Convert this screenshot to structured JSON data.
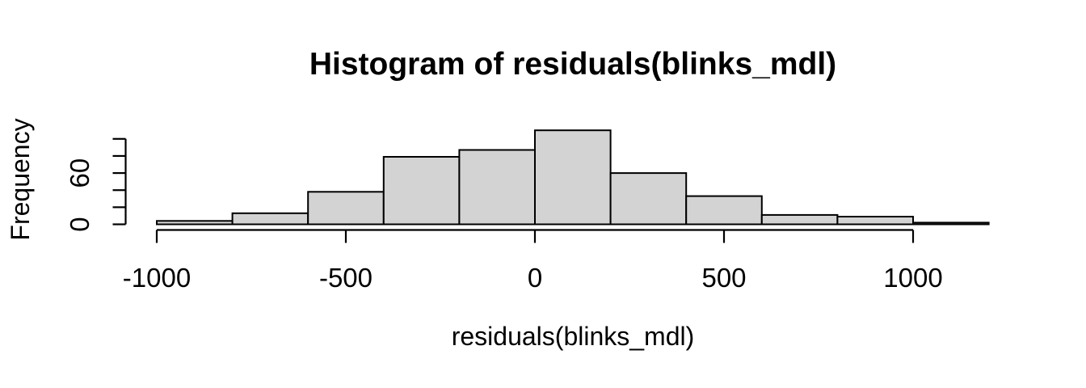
{
  "figure": {
    "background": "#FFFFFF"
  },
  "chart_data": {
    "type": "bar",
    "subtype": "histogram",
    "title": "Histogram of residuals(blinks_mdl)",
    "xlabel": "residuals(blinks_mdl)",
    "ylabel": "Frequency",
    "breaks": [
      -1000,
      -800,
      -600,
      -400,
      -200,
      0,
      200,
      400,
      600,
      800,
      1000,
      1200
    ],
    "counts": [
      4,
      13,
      38,
      79,
      87,
      110,
      60,
      33,
      11,
      9,
      2
    ],
    "x_ticks": [
      {
        "value": -1000,
        "label": "-1000"
      },
      {
        "value": -500,
        "label": "-500"
      },
      {
        "value": 0,
        "label": "0"
      },
      {
        "value": 500,
        "label": "500"
      },
      {
        "value": 1000,
        "label": "1000"
      }
    ],
    "y_ticks": [
      {
        "value": 0,
        "label": "0"
      },
      {
        "value": 20,
        "label": ""
      },
      {
        "value": 40,
        "label": ""
      },
      {
        "value": 60,
        "label": "60"
      },
      {
        "value": 80,
        "label": ""
      },
      {
        "value": 100,
        "label": ""
      }
    ],
    "xlim": [
      -1000,
      1200
    ],
    "ylim": [
      0,
      110
    ],
    "grid": false,
    "legend": null,
    "bar_fill": "#D3D3D3",
    "bar_stroke": "#000000",
    "axis_color": "#000000",
    "text_color": "#000000"
  }
}
